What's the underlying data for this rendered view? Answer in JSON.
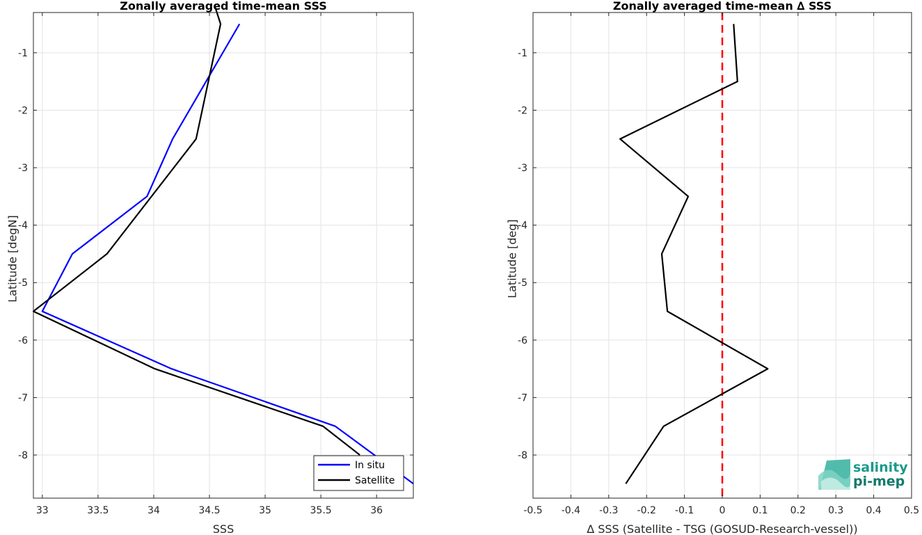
{
  "chart_data": [
    {
      "type": "line",
      "title": "Zonally averaged time-mean SSS",
      "xlabel": "SSS",
      "ylabel": "Latitude [degN]",
      "xlim": [
        32.92,
        36.33
      ],
      "ylim": [
        -8.75,
        -0.3
      ],
      "xticks": [
        33,
        33.5,
        34,
        34.5,
        35,
        35.5,
        36
      ],
      "xtick_labels": [
        "33",
        "33.5",
        "34",
        "34.5",
        "35",
        "35.5",
        "36"
      ],
      "yticks": [
        -1,
        -2,
        -3,
        -4,
        -5,
        -6,
        -7,
        -8
      ],
      "ytick_labels": [
        "-1",
        "-2",
        "-3",
        "-4",
        "-5",
        "-6",
        "-7",
        "-8"
      ],
      "grid": true,
      "legend_position": "bottom-right",
      "series": [
        {
          "name": "In situ",
          "color": "#0000ff",
          "x": [
            34.77,
            34.17,
            33.94,
            33.27,
            33.0,
            34.16,
            35.63,
            36.33
          ],
          "y": [
            -0.5,
            -2.5,
            -3.5,
            -4.5,
            -5.5,
            -6.5,
            -7.5,
            -8.5
          ]
        },
        {
          "name": "Satellite",
          "color": "#000000",
          "x": [
            34.55,
            34.6,
            34.38,
            33.58,
            32.92,
            34.01,
            35.52,
            35.85
          ],
          "y": [
            -0.2,
            -0.5,
            -2.5,
            -4.5,
            -5.5,
            -6.5,
            -7.5,
            -8.0
          ]
        }
      ]
    },
    {
      "type": "line",
      "title": "Zonally averaged time-mean ∆ SSS",
      "xlabel": "∆ SSS (Satellite - TSG (GOSUD-Research-vessel))",
      "ylabel": "Latitude [deg]",
      "xlim": [
        -0.5,
        0.5
      ],
      "ylim": [
        -8.75,
        -0.3
      ],
      "xticks": [
        -0.5,
        -0.4,
        -0.3,
        -0.2,
        -0.1,
        0,
        0.1,
        0.2,
        0.3,
        0.4,
        0.5
      ],
      "xtick_labels": [
        "-0.5",
        "-0.4",
        "-0.3",
        "-0.2",
        "-0.1",
        "0",
        "0.1",
        "0.2",
        "0.3",
        "0.4",
        "0.5"
      ],
      "yticks": [
        -1,
        -2,
        -3,
        -4,
        -5,
        -6,
        -7,
        -8
      ],
      "ytick_labels": [
        "-1",
        "-2",
        "-3",
        "-4",
        "-5",
        "-6",
        "-7",
        "-8"
      ],
      "grid": true,
      "reference_line": {
        "x": 0,
        "color": "#ff0000",
        "style": "dashed"
      },
      "series": [
        {
          "color": "#000000",
          "x": [
            0.03,
            0.04,
            -0.27,
            -0.09,
            -0.16,
            -0.145,
            0.12,
            -0.155,
            -0.255
          ],
          "y": [
            -0.5,
            -1.5,
            -2.5,
            -3.5,
            -4.5,
            -5.5,
            -6.5,
            -7.5,
            -8.5
          ]
        }
      ]
    }
  ],
  "logo": {
    "text_line1": "salinity",
    "text_line2": "pi-mep",
    "color": "#1a9a8a"
  }
}
